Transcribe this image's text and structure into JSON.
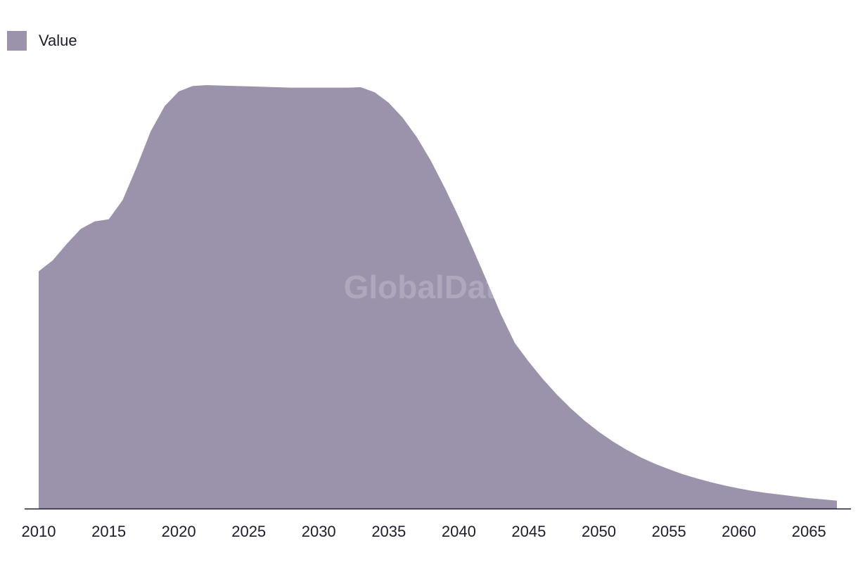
{
  "chart_data": {
    "type": "area",
    "title": "",
    "xlabel": "",
    "ylabel": "",
    "legend": {
      "position": "top-left",
      "entries": [
        "Value"
      ]
    },
    "grid": false,
    "colors": {
      "area": "#9b92ab",
      "axis": "#1f1a2e",
      "text": "#1f1a2e"
    },
    "watermark": "GlobalData",
    "xlim": [
      2010,
      2067
    ],
    "ylim": [
      0,
      100
    ],
    "x_ticks": [
      2010,
      2015,
      2020,
      2025,
      2030,
      2035,
      2040,
      2045,
      2050,
      2055,
      2060,
      2065
    ],
    "series": [
      {
        "name": "Value",
        "x": [
          2010,
          2011,
          2012,
          2013,
          2014,
          2015,
          2016,
          2017,
          2018,
          2019,
          2020,
          2021,
          2022,
          2023,
          2024,
          2025,
          2026,
          2027,
          2028,
          2029,
          2030,
          2031,
          2032,
          2033,
          2034,
          2035,
          2036,
          2037,
          2038,
          2039,
          2040,
          2041,
          2042,
          2043,
          2044,
          2045,
          2046,
          2047,
          2048,
          2049,
          2050,
          2051,
          2052,
          2053,
          2054,
          2055,
          2056,
          2057,
          2058,
          2059,
          2060,
          2061,
          2062,
          2063,
          2064,
          2065,
          2066,
          2067
        ],
        "values": [
          56.6,
          59.2,
          63.1,
          66.7,
          68.5,
          69.0,
          73.6,
          81.5,
          90.0,
          96.0,
          99.5,
          100.8,
          101.0,
          100.9,
          100.8,
          100.7,
          100.6,
          100.5,
          100.4,
          100.4,
          100.4,
          100.4,
          100.4,
          100.5,
          99.3,
          96.8,
          93.2,
          88.6,
          83.0,
          76.5,
          69.5,
          62.0,
          54.3,
          46.4,
          39.5,
          35.0,
          30.9,
          27.2,
          23.9,
          20.9,
          18.3,
          16.0,
          14.0,
          12.2,
          10.7,
          9.4,
          8.2,
          7.2,
          6.3,
          5.5,
          4.8,
          4.2,
          3.7,
          3.3,
          2.9,
          2.5,
          2.2,
          1.9
        ]
      }
    ]
  }
}
